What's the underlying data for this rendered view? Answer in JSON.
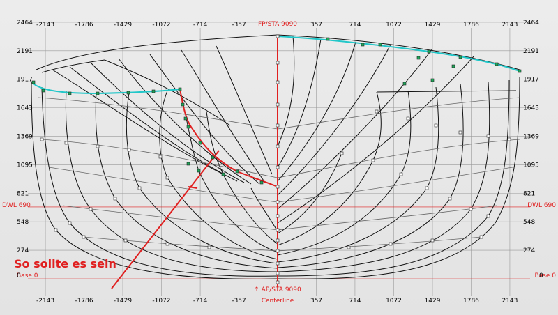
{
  "x_ticks": [
    "-2143",
    "-1786",
    "-1429",
    "-1072",
    "-714",
    "-357",
    "357",
    "714",
    "1072",
    "1429",
    "1786",
    "2143"
  ],
  "y_ticks": [
    "2464",
    "2191",
    "1917",
    "1643",
    "1369",
    "1095",
    "821",
    "548",
    "274"
  ],
  "x_tick_values": [
    -2143,
    -1786,
    -1429,
    -1072,
    -714,
    -357,
    357,
    714,
    1072,
    1429,
    1786,
    2143
  ],
  "y_tick_values": [
    2464,
    2191,
    1917,
    1643,
    1369,
    1095,
    821,
    548,
    274
  ],
  "labels": {
    "dwl_left": "DWL 690",
    "dwl_right": "DWL 690",
    "base_left": "Base 0",
    "base_right": "Base 0",
    "base_zero_left": "0",
    "base_zero_right": "0",
    "centerline": "Centerline",
    "top_station": "FP/STA 9090",
    "bottom_station": "↑ AP/STA 9090"
  },
  "annotation": "So sollte es sein",
  "colors": {
    "hull_line": "#000000",
    "grid_line": "#999999",
    "sheer": "#22c7c9",
    "highlight": "#e02020",
    "background": "#e6e6e6"
  }
}
